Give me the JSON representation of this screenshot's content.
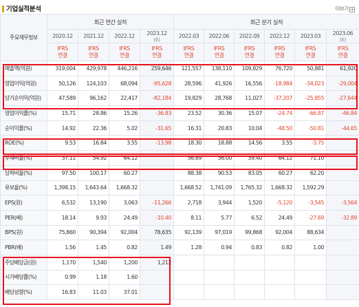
{
  "header": {
    "title": "기업실적분석",
    "more_label": "더보기",
    "more_icon": "plus-box-icon"
  },
  "table": {
    "row_header": "주요재무정보",
    "annual_group": "최근 연간 실적",
    "quarter_group": "최근 분기 실적",
    "periods": [
      {
        "label": "2020.12",
        "est": ""
      },
      {
        "label": "2021.12",
        "est": ""
      },
      {
        "label": "2022.12",
        "est": ""
      },
      {
        "label": "2023.12",
        "est": "(E)"
      },
      {
        "label": "2022.03",
        "est": ""
      },
      {
        "label": "2022.06",
        "est": ""
      },
      {
        "label": "2022.09",
        "est": ""
      },
      {
        "label": "2022.12",
        "est": ""
      },
      {
        "label": "2023.03",
        "est": ""
      },
      {
        "label": "2023.06",
        "est": "(E)"
      }
    ],
    "basis_line1": "IFRS",
    "basis_line2": "연결",
    "rows": [
      {
        "label": "매출액(억원)",
        "values": [
          "319,004",
          "429,978",
          "446,216",
          "259,646",
          "121,557",
          "138,110",
          "109,829",
          "76,720",
          "50,881",
          "61,920"
        ]
      },
      {
        "label": "영업이익(억원)",
        "values": [
          "50,126",
          "124,103",
          "68,094",
          "-95,628",
          "28,596",
          "41,926",
          "16,556",
          "-18,984",
          "-34,023",
          "-29,004"
        ]
      },
      {
        "label": "당기순이익(억원)",
        "values": [
          "47,589",
          "96,162",
          "22,417",
          "-82,184",
          "19,829",
          "28,768",
          "11,027",
          "-37,207",
          "-25,855",
          "-27,644"
        ]
      },
      {
        "label": "영업이익률(%)",
        "values": [
          "15.71",
          "28.86",
          "15.26",
          "-36.83",
          "23.52",
          "30.36",
          "15.07",
          "-24.74",
          "-66.87",
          "-46.84"
        ]
      },
      {
        "label": "순이익률(%)",
        "values": [
          "14.92",
          "22.36",
          "5.02",
          "-31.65",
          "16.31",
          "20.83",
          "10.04",
          "-48.50",
          "-50.81",
          "-44.65"
        ]
      },
      {
        "label": "ROE(%)",
        "values": [
          "9.53",
          "16.84",
          "3.55",
          "-13.98",
          "18.30",
          "18.88",
          "14.56",
          "3.55",
          "-3.75",
          ""
        ]
      },
      {
        "label": "부채비율(%)",
        "values": [
          "37.11",
          "54.92",
          "64.12",
          "",
          "56.89",
          "56.00",
          "59.40",
          "64.12",
          "71.10",
          ""
        ]
      },
      {
        "label": "당좌비율(%)",
        "values": [
          "97.50",
          "100.17",
          "60.27",
          "",
          "88.38",
          "90.53",
          "83.05",
          "60.27",
          "62.20",
          ""
        ]
      },
      {
        "label": "유보율(%)",
        "values": [
          "1,398.15",
          "1,643.64",
          "1,668.32",
          "",
          "1,668.52",
          "1,741.09",
          "1,765.32",
          "1,668.32",
          "1,592.29",
          ""
        ]
      },
      {
        "label": "EPS(원)",
        "values": [
          "6,532",
          "13,190",
          "3,063",
          "-11,266",
          "2,718",
          "3,944",
          "1,520",
          "-5,120",
          "-3,545",
          "-3,564"
        ]
      },
      {
        "label": "PER(배)",
        "values": [
          "18.14",
          "9.93",
          "24.49",
          "-10.40",
          "8.11",
          "5.77",
          "6.52",
          "24.49",
          "-27.69",
          "-32.89"
        ]
      },
      {
        "label": "BPS(원)",
        "values": [
          "75,860",
          "90,394",
          "92,004",
          "78,635",
          "92,139",
          "97,019",
          "99,868",
          "92,004",
          "88,634",
          ""
        ]
      },
      {
        "label": "PBR(배)",
        "values": [
          "1.56",
          "1.45",
          "0.82",
          "1.49",
          "1.28",
          "0.94",
          "0.83",
          "0.82",
          "1.00",
          ""
        ]
      },
      {
        "label": "주당배당금(원)",
        "values": [
          "1,170",
          "1,540",
          "1,200",
          "1,212",
          "",
          "",
          "",
          "",
          "",
          ""
        ]
      },
      {
        "label": "시가배당률(%)",
        "values": [
          "0.99",
          "1.18",
          "1.60",
          "",
          "",
          "",
          "",
          "",
          "",
          ""
        ]
      },
      {
        "label": "배당성향(%)",
        "values": [
          "16.83",
          "11.03",
          "37.01",
          "",
          "",
          "",
          "",
          "",
          "",
          ""
        ]
      }
    ]
  },
  "highlight_color": "#e8101b",
  "negative_color": "#e0462e"
}
